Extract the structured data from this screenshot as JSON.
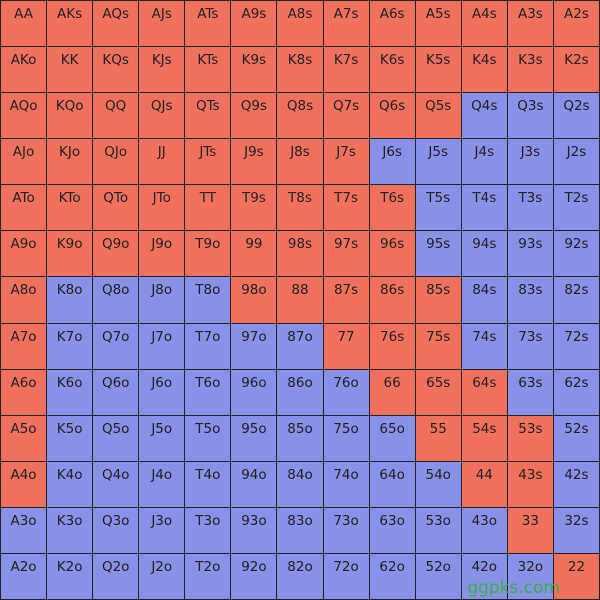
{
  "grid": {
    "labels": [
      [
        "AA",
        "AKs",
        "AQs",
        "AJs",
        "ATs",
        "A9s",
        "A8s",
        "A7s",
        "A6s",
        "A5s",
        "A4s",
        "A3s",
        "A2s"
      ],
      [
        "AKo",
        "KK",
        "KQs",
        "KJs",
        "KTs",
        "K9s",
        "K8s",
        "K7s",
        "K6s",
        "K5s",
        "K4s",
        "K3s",
        "K2s"
      ],
      [
        "AQo",
        "KQo",
        "QQ",
        "QJs",
        "QTs",
        "Q9s",
        "Q8s",
        "Q7s",
        "Q6s",
        "Q5s",
        "Q4s",
        "Q3s",
        "Q2s"
      ],
      [
        "AJo",
        "KJo",
        "QJo",
        "JJ",
        "JTs",
        "J9s",
        "J8s",
        "J7s",
        "J6s",
        "J5s",
        "J4s",
        "J3s",
        "J2s"
      ],
      [
        "ATo",
        "KTo",
        "QTo",
        "JTo",
        "TT",
        "T9s",
        "T8s",
        "T7s",
        "T6s",
        "T5s",
        "T4s",
        "T3s",
        "T2s"
      ],
      [
        "A9o",
        "K9o",
        "Q9o",
        "J9o",
        "T9o",
        "99",
        "98s",
        "97s",
        "96s",
        "95s",
        "94s",
        "93s",
        "92s"
      ],
      [
        "A8o",
        "K8o",
        "Q8o",
        "J8o",
        "T8o",
        "98o",
        "88",
        "87s",
        "86s",
        "85s",
        "84s",
        "83s",
        "82s"
      ],
      [
        "A7o",
        "K7o",
        "Q7o",
        "J7o",
        "T7o",
        "97o",
        "87o",
        "77",
        "76s",
        "75s",
        "74s",
        "73s",
        "72s"
      ],
      [
        "A6o",
        "K6o",
        "Q6o",
        "J6o",
        "T6o",
        "96o",
        "86o",
        "76o",
        "66",
        "65s",
        "64s",
        "63s",
        "62s"
      ],
      [
        "A5o",
        "K5o",
        "Q5o",
        "J5o",
        "T5o",
        "95o",
        "85o",
        "75o",
        "65o",
        "55",
        "54s",
        "53s",
        "52s"
      ],
      [
        "A4o",
        "K4o",
        "Q4o",
        "J4o",
        "T4o",
        "94o",
        "84o",
        "74o",
        "64o",
        "54o",
        "44",
        "43s",
        "42s"
      ],
      [
        "A3o",
        "K3o",
        "Q3o",
        "J3o",
        "T3o",
        "93o",
        "83o",
        "73o",
        "63o",
        "53o",
        "43o",
        "33",
        "32s"
      ],
      [
        "A2o",
        "K2o",
        "Q2o",
        "J2o",
        "T2o",
        "92o",
        "82o",
        "72o",
        "62o",
        "52o",
        "42o",
        "32o",
        "22"
      ]
    ],
    "colors": [
      [
        "#f0705e",
        "#f0705e",
        "#f0705e",
        "#f0705e",
        "#f0705e",
        "#f0705e",
        "#f0705e",
        "#f0705e",
        "#f0705e",
        "#f0705e",
        "#f0705e",
        "#f0705e",
        "#f0705e"
      ],
      [
        "#f0705e",
        "#f0705e",
        "#f0705e",
        "#f0705e",
        "#f0705e",
        "#f0705e",
        "#f0705e",
        "#f0705e",
        "#f0705e",
        "#f0705e",
        "#f0705e",
        "#f0705e",
        "#f0705e"
      ],
      [
        "#f0705e",
        "#f0705e",
        "#f0705e",
        "#f0705e",
        "#f0705e",
        "#f0705e",
        "#f0705e",
        "#f0705e",
        "#f0705e",
        "#f0705e",
        "#8890e8",
        "#8890e8",
        "#8890e8"
      ],
      [
        "#f0705e",
        "#f0705e",
        "#f0705e",
        "#f0705e",
        "#f0705e",
        "#f0705e",
        "#f0705e",
        "#f0705e",
        "#8890e8",
        "#8890e8",
        "#8890e8",
        "#8890e8",
        "#8890e8"
      ],
      [
        "#f0705e",
        "#f0705e",
        "#f0705e",
        "#f0705e",
        "#f0705e",
        "#f0705e",
        "#f0705e",
        "#f0705e",
        "#f0705e",
        "#8890e8",
        "#8890e8",
        "#8890e8",
        "#8890e8"
      ],
      [
        "#f0705e",
        "#f0705e",
        "#f0705e",
        "#f0705e",
        "#f0705e",
        "#f0705e",
        "#f0705e",
        "#f0705e",
        "#f0705e",
        "#8890e8",
        "#8890e8",
        "#8890e8",
        "#8890e8"
      ],
      [
        "#f0705e",
        "#8890e8",
        "#8890e8",
        "#8890e8",
        "#8890e8",
        "#f0705e",
        "#f0705e",
        "#f0705e",
        "#f0705e",
        "#f0705e",
        "#8890e8",
        "#8890e8",
        "#8890e8"
      ],
      [
        "#f0705e",
        "#8890e8",
        "#8890e8",
        "#8890e8",
        "#8890e8",
        "#8890e8",
        "#8890e8",
        "#f0705e",
        "#f0705e",
        "#f0705e",
        "#8890e8",
        "#8890e8",
        "#8890e8"
      ],
      [
        "#f0705e",
        "#8890e8",
        "#8890e8",
        "#8890e8",
        "#8890e8",
        "#8890e8",
        "#8890e8",
        "#8890e8",
        "#f0705e",
        "#f0705e",
        "#f0705e",
        "#8890e8",
        "#8890e8"
      ],
      [
        "#f0705e",
        "#8890e8",
        "#8890e8",
        "#8890e8",
        "#8890e8",
        "#8890e8",
        "#8890e8",
        "#8890e8",
        "#8890e8",
        "#f0705e",
        "#f0705e",
        "#f0705e",
        "#8890e8"
      ],
      [
        "#f0705e",
        "#8890e8",
        "#8890e8",
        "#8890e8",
        "#8890e8",
        "#8890e8",
        "#8890e8",
        "#8890e8",
        "#8890e8",
        "#8890e8",
        "#f0705e",
        "#f0705e",
        "#8890e8"
      ],
      [
        "#8890e8",
        "#8890e8",
        "#8890e8",
        "#8890e8",
        "#8890e8",
        "#8890e8",
        "#8890e8",
        "#8890e8",
        "#8890e8",
        "#8890e8",
        "#8890e8",
        "#f0705e",
        "#8890e8"
      ],
      [
        "#8890e8",
        "#8890e8",
        "#8890e8",
        "#8890e8",
        "#8890e8",
        "#8890e8",
        "#8890e8",
        "#8890e8",
        "#8890e8",
        "#8890e8",
        "#8890e8",
        "#8890e8",
        "#f0705e"
      ]
    ]
  },
  "watermark": "ggpks.com"
}
